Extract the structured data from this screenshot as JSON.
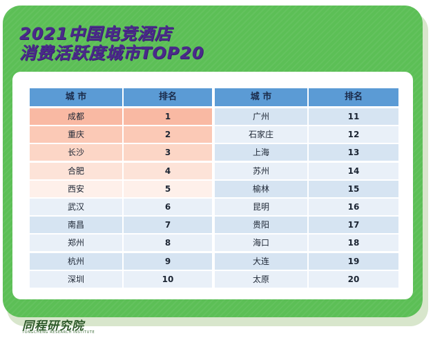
{
  "title_line1": "2021中国电竞酒店",
  "title_line2": "消费活跃度城市TOP20",
  "table": {
    "col_city": "城 市",
    "col_rank": "排名",
    "left_rows": [
      {
        "city": "成都",
        "rank": "1"
      },
      {
        "city": "重庆",
        "rank": "2"
      },
      {
        "city": "长沙",
        "rank": "3"
      },
      {
        "city": "合肥",
        "rank": "4"
      },
      {
        "city": "西安",
        "rank": "5"
      },
      {
        "city": "武汉",
        "rank": "6"
      },
      {
        "city": "南昌",
        "rank": "7"
      },
      {
        "city": "郑州",
        "rank": "8"
      },
      {
        "city": "杭州",
        "rank": "9"
      },
      {
        "city": "深圳",
        "rank": "10"
      }
    ],
    "right_rows": [
      {
        "city": "广州",
        "rank": "11"
      },
      {
        "city": "石家庄",
        "rank": "12"
      },
      {
        "city": "上海",
        "rank": "13"
      },
      {
        "city": "苏州",
        "rank": "14"
      },
      {
        "city": "榆林",
        "rank": "15"
      },
      {
        "city": "昆明",
        "rank": "16"
      },
      {
        "city": "贵阳",
        "rank": "17"
      },
      {
        "city": "海口",
        "rank": "18"
      },
      {
        "city": "大连",
        "rank": "19"
      },
      {
        "city": "太原",
        "rank": "20"
      }
    ]
  },
  "brand": {
    "name": "同程研究院",
    "subtitle": "TONGCHENG RESEARCH INSTITUTE"
  },
  "colors": {
    "card_green": "#5cbf56",
    "title_purple": "#4a2a8a",
    "header_blue": "#5b9bd5",
    "row_light": "#e9f0f8",
    "row_alt": "#d6e4f2",
    "highlight_1": "#f9b9a3",
    "highlight_2": "#fbc9b6",
    "highlight_3": "#fcd6c6",
    "highlight_4": "#fde3d8",
    "highlight_5": "#fef0ea"
  }
}
